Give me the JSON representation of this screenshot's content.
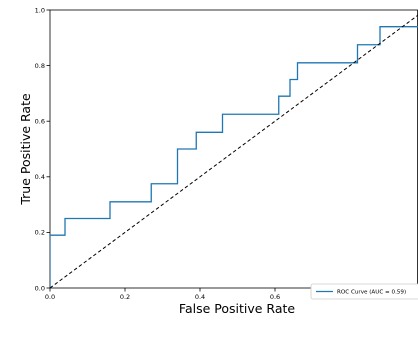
{
  "chart_data": {
    "type": "line",
    "xlabel": "False Positive Rate",
    "ylabel": "True Positive Rate",
    "xlim": [
      0.0,
      1.0
    ],
    "ylim": [
      0.0,
      1.0
    ],
    "x_ticks": [
      "0.0",
      "0.2",
      "0.4",
      "0.6",
      "0.8"
    ],
    "y_ticks": [
      "0.0",
      "0.2",
      "0.4",
      "0.6",
      "0.8",
      "1.0"
    ],
    "grid": false,
    "legend_position": "lower-right",
    "series": [
      {
        "name": "ROC Curve (AUC = 0.59)",
        "color": "#1f77b4",
        "style": "solid",
        "x": [
          0.0,
          0.0,
          0.0,
          0.0,
          0.04,
          0.04,
          0.16,
          0.16,
          0.27,
          0.27,
          0.34,
          0.34,
          0.39,
          0.39,
          0.46,
          0.46,
          0.61,
          0.61,
          0.64,
          0.64,
          0.66,
          0.66,
          0.82,
          0.82,
          0.88,
          0.88,
          1.0
        ],
        "y": [
          0.0,
          0.06,
          0.06,
          0.19,
          0.19,
          0.25,
          0.25,
          0.31,
          0.31,
          0.375,
          0.375,
          0.5,
          0.5,
          0.56,
          0.56,
          0.625,
          0.625,
          0.69,
          0.69,
          0.75,
          0.75,
          0.81,
          0.81,
          0.875,
          0.875,
          0.94,
          0.94
        ]
      },
      {
        "color": "#000000",
        "style": "dashed",
        "x": [
          0.0,
          1.0
        ],
        "y": [
          0.0,
          1.0
        ]
      }
    ]
  }
}
